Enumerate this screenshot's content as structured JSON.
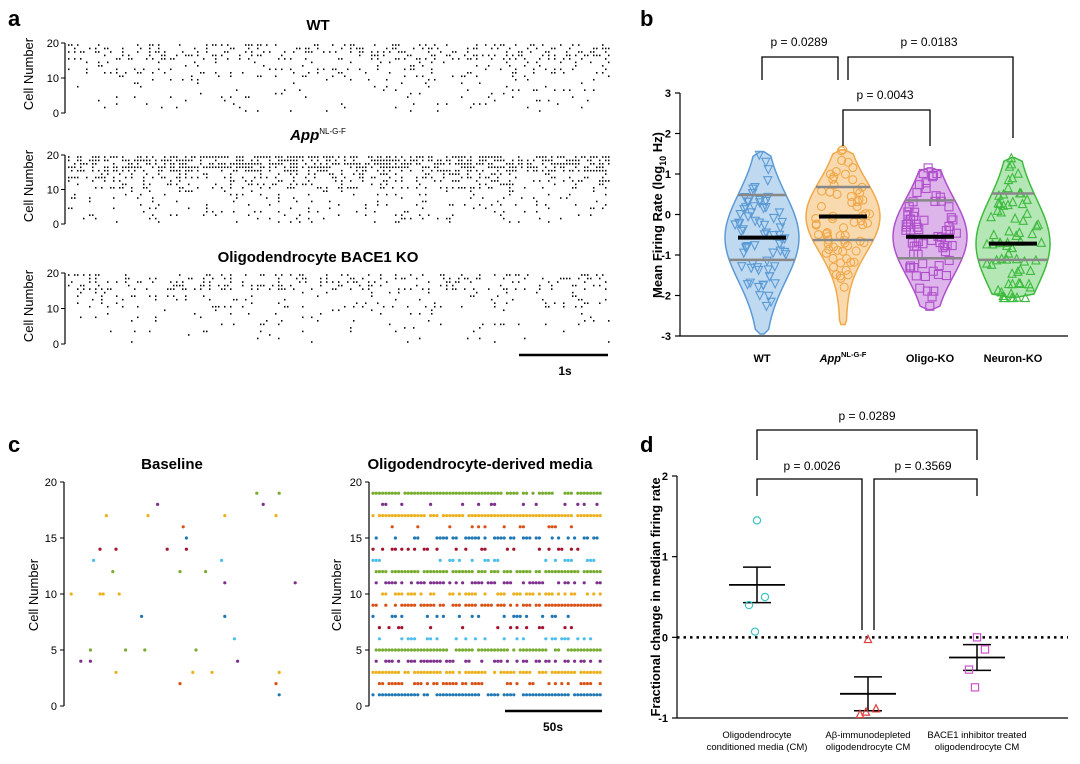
{
  "panel_labels": {
    "a": "a",
    "b": "b",
    "c": "c",
    "d": "d"
  },
  "chart_data": [
    {
      "panel": "a",
      "type": "scatter",
      "subtype": "raster",
      "ylabel": "Cell Number",
      "rasters": [
        {
          "title": "WT",
          "title_suffix": "",
          "yticks": [
            "0",
            "10",
            "20"
          ]
        },
        {
          "title": "App",
          "title_suffix": "NL-G-F",
          "yticks": [
            "0",
            "10",
            "20"
          ]
        },
        {
          "title": "Oligodendrocyte BACE1 KO",
          "title_suffix": "",
          "yticks": [
            "0",
            "10",
            "20"
          ]
        }
      ],
      "scale_bar": "1s",
      "dot_color": "#000000"
    },
    {
      "panel": "b",
      "type": "scatter",
      "subtype": "violin",
      "ylabel": "Mean Firing Rate (log",
      "ylabel_sub": "10",
      "ylabel_end": " Hz)",
      "ylim": [
        -3,
        3
      ],
      "yticks": [
        "-3",
        "-2",
        "-1",
        "0",
        "1",
        "2",
        "3"
      ],
      "groups": [
        {
          "label": "WT",
          "label_suffix": "",
          "color": "#5b9bd5",
          "fill": "#b4d2ee",
          "marker": "triangle-down",
          "median": -0.57,
          "q1": -1.12,
          "q3": 0.48,
          "min": -2.95,
          "max": 1.55
        },
        {
          "label": "App",
          "label_suffix": "NL-G-F",
          "color": "#f0a84a",
          "fill": "#f8d3a0",
          "marker": "circle",
          "median": -0.05,
          "q1": -0.63,
          "q3": 0.68,
          "min": -2.72,
          "max": 1.6
        },
        {
          "label": "Oligo-KO",
          "label_suffix": "",
          "color": "#b04fcc",
          "fill": "#d8a8e8",
          "marker": "square",
          "median": -0.55,
          "q1": -1.08,
          "q3": 0.35,
          "min": -2.35,
          "max": 1.15
        },
        {
          "label": "Neuron-KO",
          "label_suffix": "",
          "color": "#3dbb3d",
          "fill": "#a8e2a8",
          "marker": "triangle-up",
          "median": -0.72,
          "q1": -1.12,
          "q3": 0.52,
          "min": -2.05,
          "max": 1.4
        }
      ],
      "comparisons": [
        {
          "text": "p = 0.0289",
          "from": 0,
          "to": 1
        },
        {
          "text": "p = 0.0183",
          "from": 1,
          "to": 3
        },
        {
          "text": "p = 0.0043",
          "from": 1,
          "to": 2
        }
      ]
    },
    {
      "panel": "c",
      "type": "scatter",
      "subtype": "raster",
      "ylabel": "Cell Number",
      "yticks": [
        "0",
        "5",
        "10",
        "15",
        "20"
      ],
      "rasters": [
        {
          "title": "Baseline"
        },
        {
          "title": "Oligodendrocyte-derived media"
        }
      ],
      "scale_bar": "50s",
      "row_colors": [
        "#1f77b4",
        "#d95319",
        "#edb120",
        "#7e2f8e",
        "#77ac30",
        "#4dbeee",
        "#a2142f"
      ]
    },
    {
      "panel": "d",
      "type": "scatter",
      "ylabel": "Fractional change in median firing rate",
      "ylim": [
        -1,
        2
      ],
      "yticks": [
        "-1",
        "0",
        "1",
        "2"
      ],
      "groups": [
        {
          "label_lines": [
            "Oligodendrocyte",
            "conditioned media (CM)"
          ],
          "color": "#3cc4c4",
          "marker": "circle",
          "values": [
            1.45,
            0.5,
            0.4,
            0.07
          ],
          "mean": 0.65,
          "sem_low": 0.43,
          "sem_high": 0.87
        },
        {
          "label_lines": [
            "Aβ-immunodepleted",
            "oligodendrocyte CM"
          ],
          "color": "#e03c3c",
          "marker": "triangle-up",
          "values": [
            -0.02,
            -0.88,
            -0.95,
            -0.92
          ],
          "mean": -0.7,
          "sem_low": -0.91,
          "sem_high": -0.49
        },
        {
          "label_lines": [
            "BACE1 inhibitor treated",
            "oligodendrocyte CM"
          ],
          "color": "#cc55cc",
          "marker": "square",
          "values": [
            0.0,
            -0.15,
            -0.4,
            -0.62
          ],
          "mean": -0.25,
          "sem_low": -0.41,
          "sem_high": -0.09
        }
      ],
      "comparisons": [
        {
          "text": "p = 0.0289",
          "from": 0,
          "to": 2
        },
        {
          "text": "p = 0.0026",
          "from": 0,
          "to": 1
        },
        {
          "text": "p = 0.3569",
          "from": 1,
          "to": 2
        }
      ]
    }
  ]
}
